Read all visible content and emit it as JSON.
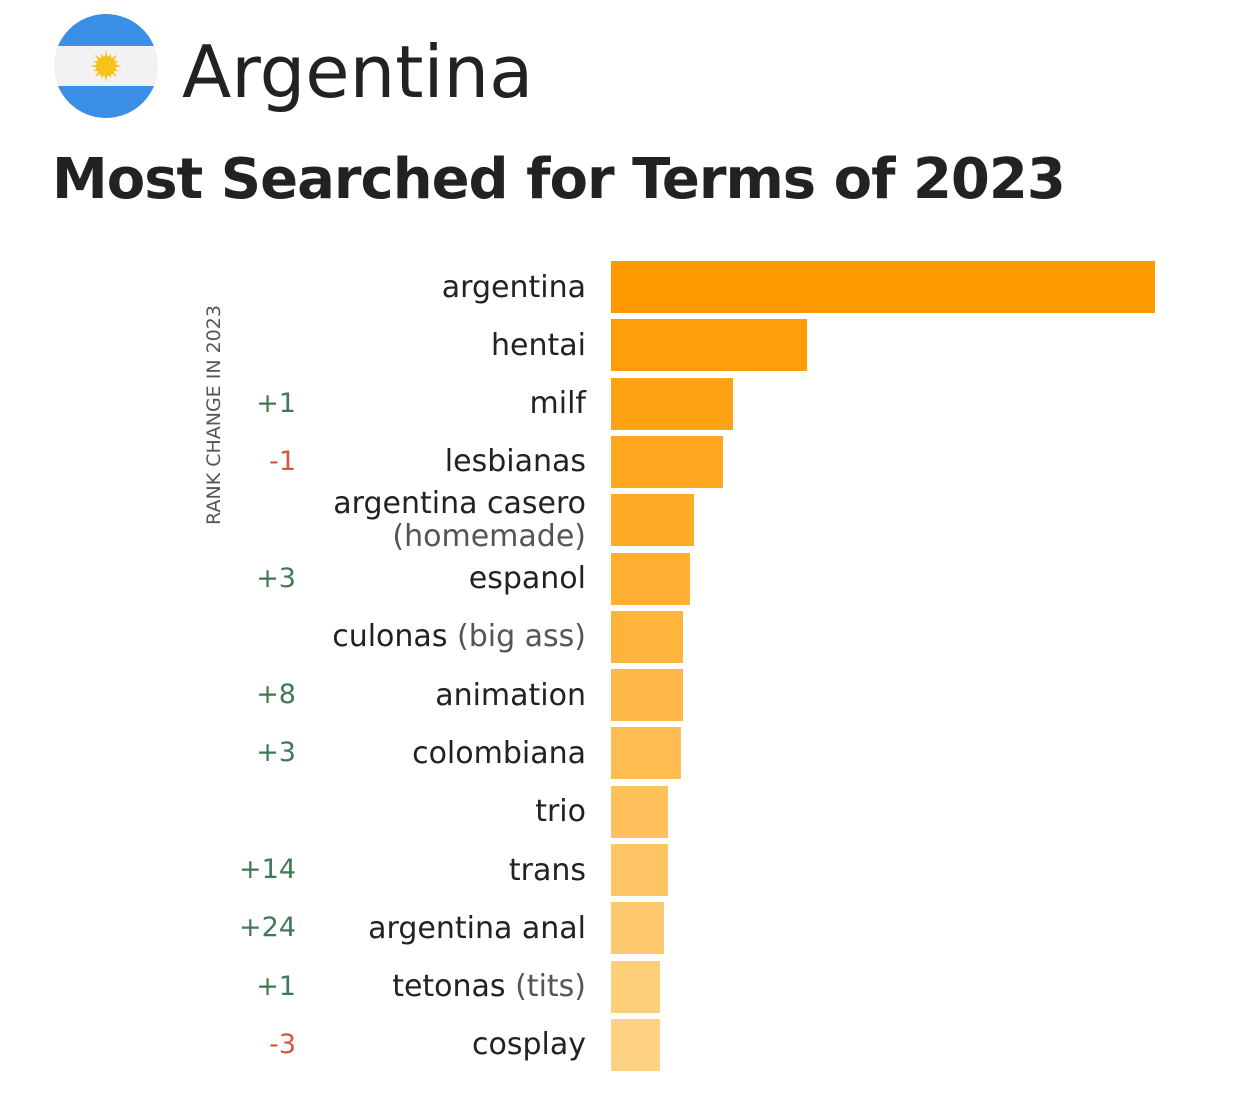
{
  "header": {
    "country": "Argentina",
    "title": "Most Searched for Terms of 2023"
  },
  "colors": {
    "flag_blue": "#3a8ee6",
    "flag_white": "#f2f2f2",
    "sun": "#f7c21a",
    "positive_change": "#3e7a52",
    "negative_change": "#d2583c",
    "bar_darkest": "#ff9a00",
    "bar_lightest": "#ffd283"
  },
  "chart_data": {
    "type": "bar",
    "orientation": "horizontal",
    "rank_change_label": "RANK CHANGE IN 2023",
    "categories": [
      "argentina",
      "hentai",
      "milf",
      "lesbianas",
      "argentina casero (homemade)",
      "espanol",
      "culonas (big ass)",
      "animation",
      "colombiana",
      "trio",
      "trans",
      "argentina anal",
      "tetonas (tits)",
      "cosplay"
    ],
    "values": [
      100,
      36,
      22.5,
      20.5,
      15.2,
      14.5,
      13.3,
      13.3,
      12.9,
      10.5,
      10.5,
      9.7,
      9.0,
      9.0
    ],
    "rank_change": [
      "",
      "",
      "+1",
      "-1",
      "",
      "+3",
      "",
      "+8",
      "+3",
      "",
      "+14",
      "+24",
      "+1",
      "-3"
    ],
    "term_lines": [
      [
        {
          "t": "argentina",
          "s": false
        }
      ],
      [
        {
          "t": "hentai",
          "s": false
        }
      ],
      [
        {
          "t": "milf",
          "s": false
        }
      ],
      [
        {
          "t": "lesbianas",
          "s": false
        }
      ],
      [
        {
          "t": "argentina casero",
          "s": false
        },
        {
          "t": "(homemade)",
          "s": true,
          "newline": true
        }
      ],
      [
        {
          "t": "espanol",
          "s": false
        }
      ],
      [
        {
          "t": "culonas",
          "s": false
        },
        {
          "t": " (big ass)",
          "s": true
        }
      ],
      [
        {
          "t": "animation",
          "s": false
        }
      ],
      [
        {
          "t": "colombiana",
          "s": false
        }
      ],
      [
        {
          "t": "trio",
          "s": false
        }
      ],
      [
        {
          "t": "trans",
          "s": false
        }
      ],
      [
        {
          "t": "argentina anal",
          "s": false
        }
      ],
      [
        {
          "t": "tetonas",
          "s": false
        },
        {
          "t": " (tits)",
          "s": true
        }
      ],
      [
        {
          "t": "cosplay",
          "s": false
        }
      ]
    ],
    "xlim": [
      0,
      100
    ],
    "grid": false,
    "legend": "none"
  }
}
